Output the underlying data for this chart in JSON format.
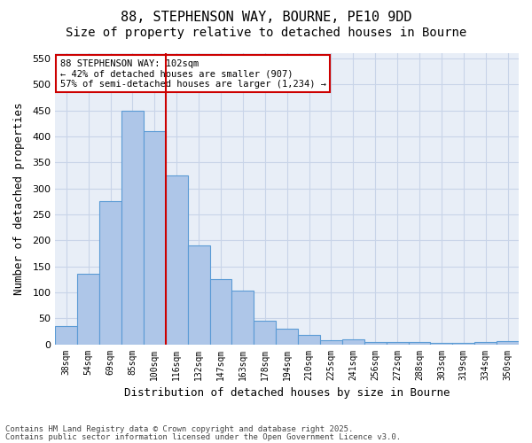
{
  "title_line1": "88, STEPHENSON WAY, BOURNE, PE10 9DD",
  "title_line2": "Size of property relative to detached houses in Bourne",
  "xlabel": "Distribution of detached houses by size in Bourne",
  "ylabel": "Number of detached properties",
  "categories": [
    "38sqm",
    "54sqm",
    "69sqm",
    "85sqm",
    "100sqm",
    "116sqm",
    "132sqm",
    "147sqm",
    "163sqm",
    "178sqm",
    "194sqm",
    "210sqm",
    "225sqm",
    "241sqm",
    "256sqm",
    "272sqm",
    "288sqm",
    "303sqm",
    "319sqm",
    "334sqm",
    "350sqm"
  ],
  "values": [
    35,
    135,
    275,
    450,
    410,
    325,
    190,
    125,
    103,
    45,
    30,
    18,
    7,
    9,
    4,
    5,
    4,
    2,
    2,
    5,
    6
  ],
  "bar_color": "#aec6e8",
  "bar_edge_color": "#5b9bd5",
  "vline_color": "#cc0000",
  "annotation_text": "88 STEPHENSON WAY: 102sqm\n← 42% of detached houses are smaller (907)\n57% of semi-detached houses are larger (1,234) →",
  "annotation_box_color": "#cc0000",
  "ylim": [
    0,
    560
  ],
  "yticks": [
    0,
    50,
    100,
    150,
    200,
    250,
    300,
    350,
    400,
    450,
    500,
    550
  ],
  "footer_line1": "Contains HM Land Registry data © Crown copyright and database right 2025.",
  "footer_line2": "Contains public sector information licensed under the Open Government Licence v3.0.",
  "bg_color": "#ffffff",
  "plot_bg_color": "#e8eef7",
  "grid_color": "#c8d4e8",
  "title_fontsize": 11,
  "subtitle_fontsize": 10,
  "vline_bin_index": 4
}
